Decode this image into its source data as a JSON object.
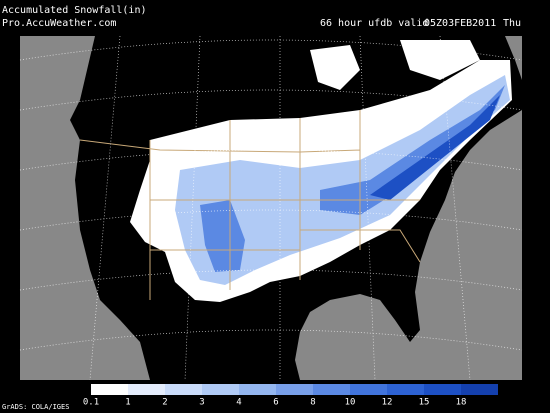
{
  "header": {
    "title": "Accumulated Snowfall(in)",
    "source": "Pro.AccuWeather.com",
    "forecast": "66 hour ufdb valid",
    "valid_time": "05Z03FEB2011",
    "weekday": "Thu"
  },
  "footer": {
    "credit": "GrADS: COLA/IGES"
  },
  "legend": {
    "levels": [
      0.1,
      1,
      2,
      3,
      4,
      6,
      8,
      10,
      12,
      15,
      18
    ],
    "colors": [
      "#ffffff",
      "#e4ecfc",
      "#cadcfa",
      "#b0caf5",
      "#94b6ef",
      "#789fe9",
      "#5b89e3",
      "#4174dc",
      "#2d62d3",
      "#1d50c4",
      "#1440ae"
    ]
  }
}
